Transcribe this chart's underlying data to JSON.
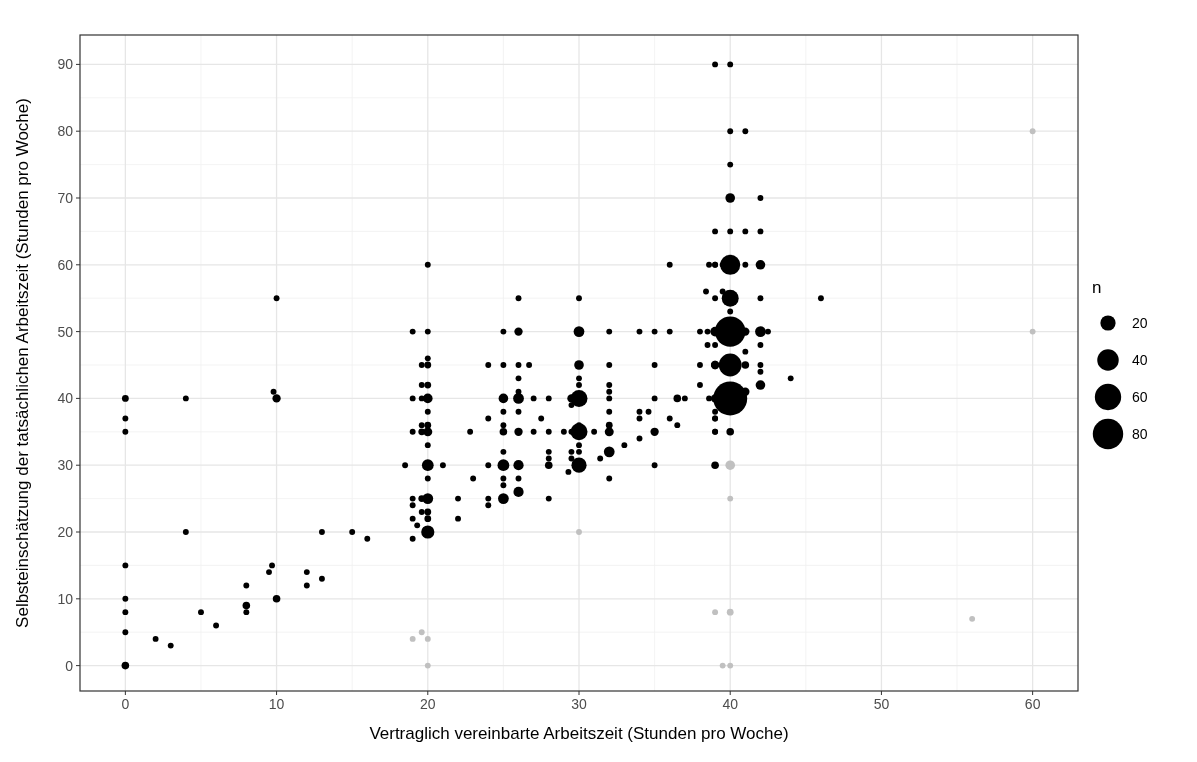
{
  "chart_data": {
    "type": "bubble",
    "xlabel": "Vertraglich vereinbarte Arbeitszeit (Stunden pro Woche)",
    "ylabel": "Selbsteinschätzung der tatsächlichen Arbeitszeit (Stunden pro Woche)",
    "legend_title": "n",
    "size_legend": [
      20,
      40,
      60,
      80
    ],
    "grid": true,
    "xlim": [
      -3,
      63
    ],
    "ylim": [
      -3.8,
      94.4
    ],
    "xticks": [
      0,
      10,
      20,
      30,
      40,
      50,
      60
    ],
    "yticks": [
      0,
      10,
      20,
      30,
      40,
      50,
      60,
      70,
      80,
      90
    ],
    "series": [
      {
        "color": "#000000",
        "x": [
          0,
          0,
          0,
          0,
          0,
          0,
          0,
          0,
          2,
          3,
          4,
          4,
          5,
          6,
          8,
          8,
          8,
          9.5,
          9.7,
          10,
          10,
          9.8,
          10,
          12,
          12,
          13,
          13,
          15,
          16,
          20,
          19,
          20,
          20,
          19.6,
          20,
          19.6,
          20,
          19,
          19.6,
          20,
          20,
          19.6,
          20,
          19,
          19.6,
          20,
          20,
          18.5,
          20,
          21,
          20,
          19,
          19.6,
          20,
          19,
          19.6,
          20,
          19,
          20,
          19.3,
          20,
          19,
          22,
          22,
          22.8,
          23,
          24,
          24,
          24,
          24,
          24,
          25,
          25,
          25,
          25,
          25,
          25,
          25,
          25,
          25,
          25,
          25,
          26,
          26,
          26,
          26,
          26,
          26,
          26,
          26,
          26,
          26,
          26,
          26.7,
          27,
          27,
          27.5,
          28,
          28,
          28,
          28,
          28,
          28,
          29.5,
          29.5,
          29,
          29.5,
          29.3,
          30,
          30,
          30,
          30,
          30,
          30,
          30,
          30,
          30,
          30,
          30,
          29.5,
          29.5,
          31,
          31.4,
          32,
          32,
          32,
          32,
          32,
          32,
          32,
          32,
          32,
          32,
          33,
          34,
          34,
          34,
          34,
          34.6,
          35,
          35,
          35,
          35,
          35,
          36,
          36,
          36.5,
          36.5,
          36,
          37,
          38,
          38,
          38,
          38.5,
          39,
          39,
          39,
          39,
          39,
          39,
          39.5,
          39.5,
          39,
          40,
          40,
          41,
          40,
          40,
          42,
          39,
          40,
          41,
          42,
          38.6,
          39,
          40,
          41,
          42,
          38.4,
          39,
          40,
          42,
          40,
          40,
          38.5,
          41,
          42,
          42.5,
          39,
          42,
          41,
          40,
          39,
          41,
          42,
          42,
          44,
          42,
          41,
          40,
          38.6,
          39,
          39,
          39,
          40,
          39,
          46
        ],
        "values": [
          0,
          5,
          8,
          10,
          15,
          35,
          37,
          40,
          4,
          3,
          40,
          20,
          8,
          6,
          8,
          9,
          12,
          14,
          15,
          10,
          40,
          41,
          55,
          12,
          14,
          13,
          20,
          20,
          19,
          60,
          50,
          50,
          46,
          45,
          45,
          42,
          42,
          40,
          40,
          40,
          38,
          36,
          36,
          35,
          35,
          35,
          33,
          30,
          30,
          30,
          28,
          25,
          25,
          25,
          24,
          23,
          23,
          22,
          22,
          21,
          20,
          19,
          25,
          22,
          35,
          28,
          45,
          37,
          30,
          25,
          24,
          50,
          45,
          40,
          38,
          36,
          35,
          32,
          30,
          28,
          27,
          25,
          55,
          50,
          45,
          43,
          41,
          40,
          38,
          35,
          30,
          28,
          26,
          45,
          40,
          35,
          37,
          40,
          35,
          32,
          31,
          30,
          25,
          40,
          39,
          35,
          35,
          29,
          55,
          50,
          45,
          43,
          42,
          40,
          36,
          35,
          33,
          32,
          30,
          32,
          31,
          35,
          31,
          50,
          45,
          42,
          41,
          40,
          38,
          36,
          35,
          32,
          28,
          33,
          50,
          38,
          37,
          34,
          38,
          50,
          45,
          40,
          35,
          30,
          37,
          50,
          40,
          36,
          60,
          40,
          50,
          45,
          42,
          48,
          60,
          50,
          45,
          40,
          35,
          37,
          56,
          60,
          90,
          90,
          80,
          80,
          75,
          70,
          70,
          65,
          65,
          65,
          65,
          60,
          60,
          60,
          60,
          60,
          56,
          55,
          55,
          55,
          53,
          50,
          50,
          50,
          50,
          50,
          48,
          48,
          47,
          45,
          45,
          45,
          45,
          44,
          43,
          42,
          41,
          40,
          40,
          38,
          37,
          35,
          35,
          30,
          55
        ],
        "sizes": [
          5,
          3,
          3,
          3,
          3,
          3,
          3,
          4,
          3,
          3,
          3,
          3,
          3,
          3,
          3,
          5,
          3,
          3,
          3,
          5,
          6,
          3,
          3,
          3,
          3,
          3,
          3,
          3,
          3,
          3,
          3,
          3,
          3,
          3,
          4,
          3,
          4,
          3,
          3,
          8,
          3,
          3,
          4,
          3,
          4,
          7,
          3,
          3,
          12,
          3,
          3,
          3,
          4,
          10,
          3,
          3,
          4,
          3,
          4,
          3,
          15,
          3,
          3,
          3,
          3,
          3,
          3,
          3,
          3,
          3,
          3,
          3,
          3,
          8,
          3,
          3,
          5,
          3,
          12,
          3,
          3,
          10,
          3,
          6,
          3,
          3,
          3,
          10,
          3,
          6,
          9,
          3,
          9,
          3,
          3,
          3,
          3,
          3,
          3,
          3,
          3,
          5,
          3,
          6,
          3,
          3,
          3,
          3,
          3,
          10,
          8,
          3,
          3,
          25,
          3,
          25,
          3,
          3,
          20,
          3,
          3,
          3,
          3,
          3,
          3,
          3,
          3,
          3,
          3,
          4,
          7,
          10,
          3,
          3,
          3,
          3,
          3,
          3,
          3,
          3,
          3,
          3,
          6,
          3,
          3,
          3,
          5,
          3,
          3,
          3,
          3,
          3,
          3,
          3,
          3,
          8,
          6,
          6,
          3,
          3,
          3,
          3,
          3,
          3,
          3,
          3,
          3,
          8,
          3,
          3,
          3,
          3,
          3,
          3,
          3,
          35,
          3,
          8,
          3,
          3,
          25,
          3,
          3,
          80,
          3,
          6,
          10,
          3,
          3,
          3,
          3,
          45,
          6,
          5,
          3,
          3,
          3,
          8,
          6,
          100,
          3,
          3,
          3,
          3,
          5,
          5,
          3
        ]
      },
      {
        "color": "#c0c0c0",
        "x": [
          40,
          40,
          39,
          40,
          39.5,
          40,
          60,
          60,
          56,
          19,
          19.6,
          20,
          20,
          30
        ],
        "values": [
          30,
          25,
          8,
          8,
          0,
          0,
          80,
          50,
          7,
          4,
          5,
          4,
          0,
          20
        ],
        "sizes": [
          8,
          3,
          3,
          4,
          3,
          3,
          3,
          3,
          3,
          3,
          3,
          3,
          3,
          3
        ]
      }
    ]
  }
}
